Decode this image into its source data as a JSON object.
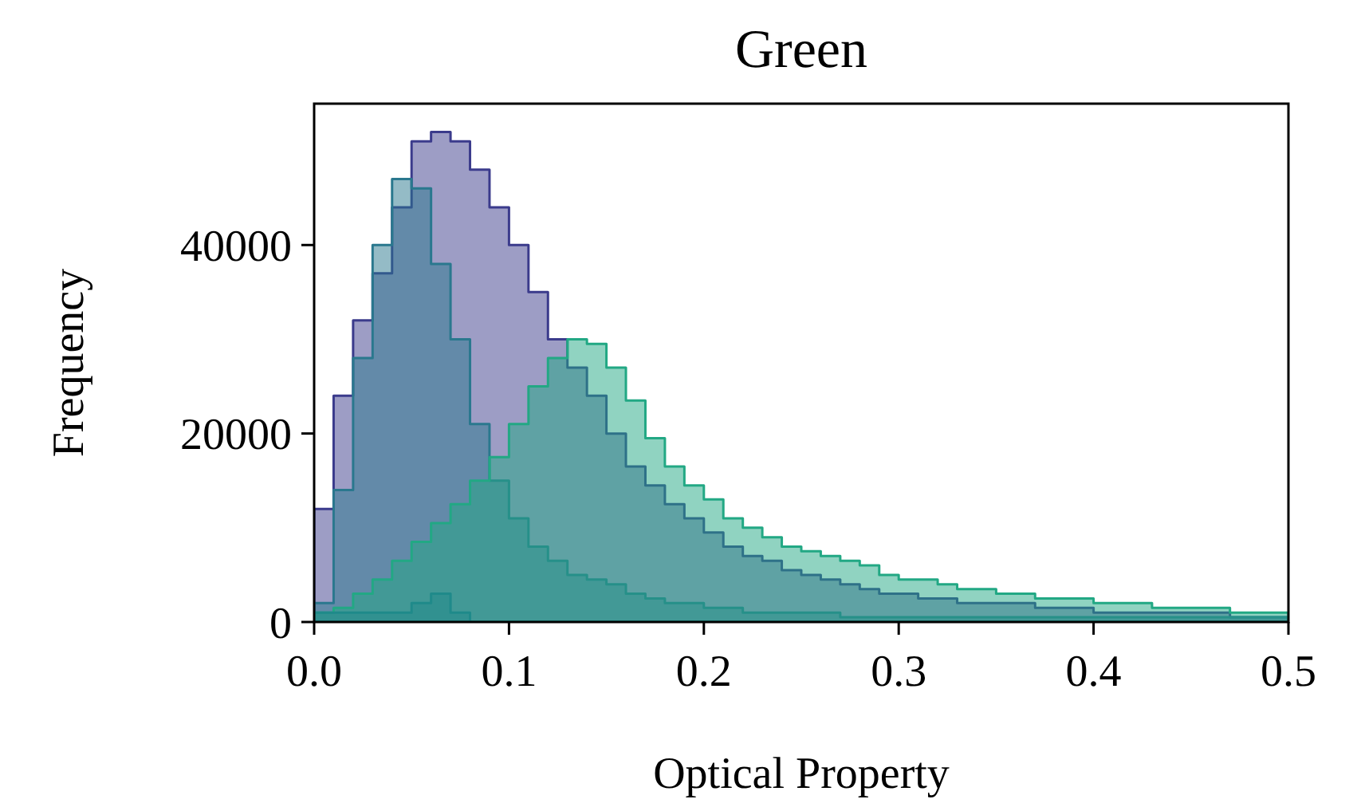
{
  "chart_data": {
    "type": "histogram",
    "title": "Green",
    "xlabel": "Optical Property",
    "ylabel": "Frequency",
    "bins": [
      0,
      0.01,
      0.02,
      0.03,
      0.04,
      0.05,
      0.06,
      0.07,
      0.08,
      0.09,
      0.1,
      0.11,
      0.12,
      0.13,
      0.14,
      0.15,
      0.16,
      0.17,
      0.18,
      0.19,
      0.2,
      0.21,
      0.22,
      0.23,
      0.24,
      0.25,
      0.26,
      0.27,
      0.28,
      0.29,
      0.3,
      0.31,
      0.32,
      0.33,
      0.34,
      0.35,
      0.36,
      0.37,
      0.38,
      0.39,
      0.4,
      0.41,
      0.42,
      0.43,
      0.44,
      0.45,
      0.46,
      0.47,
      0.48,
      0.49,
      0.5
    ],
    "series": [
      {
        "color": "#3b3b8c",
        "values": [
          12000,
          24000,
          32000,
          37000,
          44000,
          51000,
          52000,
          51000,
          48000,
          44000,
          40000,
          35000,
          30000,
          27000,
          24000,
          20000,
          16500,
          14500,
          12500,
          11000,
          9500,
          8000,
          7000,
          6500,
          5500,
          5000,
          4500,
          4000,
          3500,
          3000,
          3000,
          2500,
          2500,
          2000,
          2000,
          2000,
          2000,
          1500,
          1500,
          1500,
          1000,
          1000,
          1000,
          1000,
          1000,
          1000,
          1000,
          500,
          500,
          500
        ]
      },
      {
        "color": "#2a788e",
        "values": [
          2000,
          14000,
          28000,
          40000,
          47000,
          46000,
          38000,
          30000,
          21000,
          15000,
          11000,
          8000,
          6500,
          5000,
          4500,
          4000,
          3000,
          2500,
          2000,
          2000,
          1500,
          1500,
          1000,
          1000,
          1000,
          1000,
          1000,
          500,
          500,
          500,
          500,
          500,
          500,
          500,
          500,
          500,
          500,
          500,
          500,
          500,
          500,
          500,
          500,
          500,
          500,
          500,
          500,
          500,
          500,
          500
        ]
      },
      {
        "color": "#22a884",
        "values": [
          1000,
          1500,
          3000,
          4500,
          6500,
          8500,
          10500,
          12500,
          15000,
          17500,
          21000,
          25000,
          28000,
          30000,
          29500,
          27000,
          23500,
          19500,
          16500,
          14500,
          13000,
          11000,
          10000,
          9000,
          8000,
          7500,
          7000,
          6500,
          6000,
          5000,
          4500,
          4500,
          4000,
          3500,
          3500,
          3000,
          3000,
          2500,
          2500,
          2500,
          2000,
          2000,
          2000,
          1500,
          1500,
          1500,
          1500,
          1000,
          1000,
          1000
        ]
      },
      {
        "color": "#1f8a8a",
        "values": [
          1000,
          1000,
          1000,
          1000,
          1000,
          2000,
          3000,
          1000,
          0,
          0,
          0,
          0,
          0,
          0,
          0,
          0,
          0,
          0,
          0,
          0,
          0,
          0,
          0,
          0,
          0,
          0,
          0,
          0,
          0,
          0,
          0,
          0,
          0,
          0,
          0,
          0,
          0,
          0,
          0,
          0,
          0,
          0,
          0,
          0,
          0,
          0,
          0,
          0,
          0,
          0
        ]
      }
    ],
    "xlim": [
      0,
      0.5
    ],
    "ylim": [
      0,
      55000
    ],
    "xticks": [
      {
        "value": 0,
        "label": "0.0"
      },
      {
        "value": 0.1,
        "label": "0.1"
      },
      {
        "value": 0.2,
        "label": "0.2"
      },
      {
        "value": 0.3,
        "label": "0.3"
      },
      {
        "value": 0.4,
        "label": "0.4"
      },
      {
        "value": 0.5,
        "label": "0.5"
      }
    ],
    "yticks": [
      0,
      20000,
      40000
    ],
    "grid": false
  }
}
